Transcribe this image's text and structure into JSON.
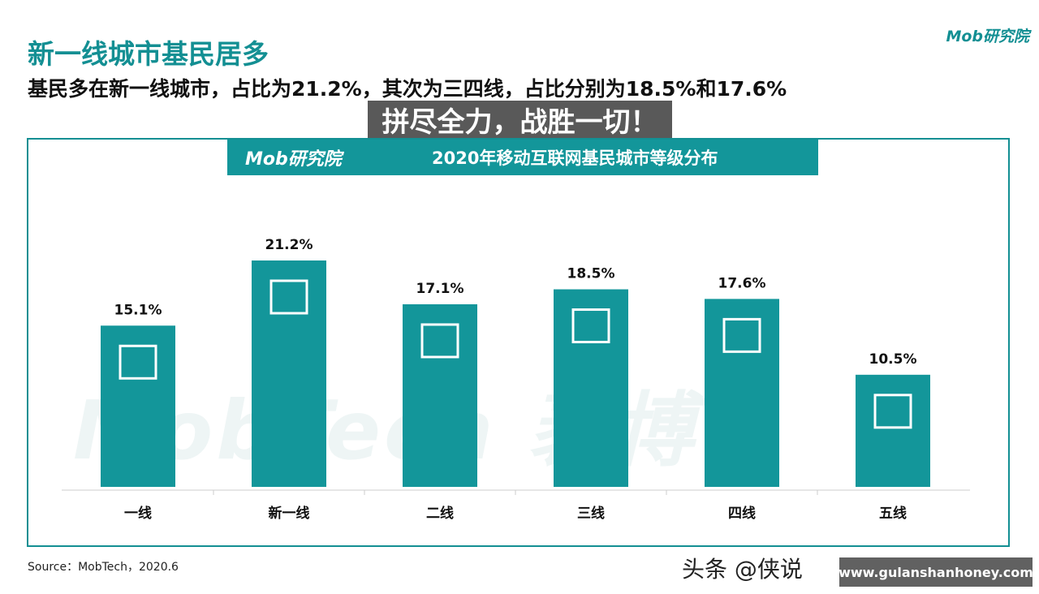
{
  "header": {
    "title": "新一线城市基民居多",
    "subtitle": "基民多在新一线城市，占比为21.2%，其次为三四线，占比分别为18.5%和17.6%",
    "logo": "Mob研究院"
  },
  "chart_data": {
    "type": "bar",
    "title": "2020年移动互联网基民城市等级分布",
    "categories": [
      "一线",
      "新一线",
      "二线",
      "三线",
      "四线",
      "五线"
    ],
    "values": [
      15.1,
      21.2,
      17.1,
      18.5,
      17.6,
      10.5
    ],
    "value_labels": [
      "15.1%",
      "21.2%",
      "17.1%",
      "18.5%",
      "17.6%",
      "10.5%"
    ],
    "unit": "%",
    "ylim": [
      0,
      25
    ],
    "grid": false,
    "bar_color": "#13969a",
    "banner_logo": "Mob研究院",
    "watermark": "MobTech 袤博"
  },
  "source": "Source：MobTech，2020.6",
  "overlay": {
    "caption": "拼尽全力，战胜一切！",
    "toutiao": "头条 @侠说",
    "url": "www.gulanshanhoney.com"
  }
}
